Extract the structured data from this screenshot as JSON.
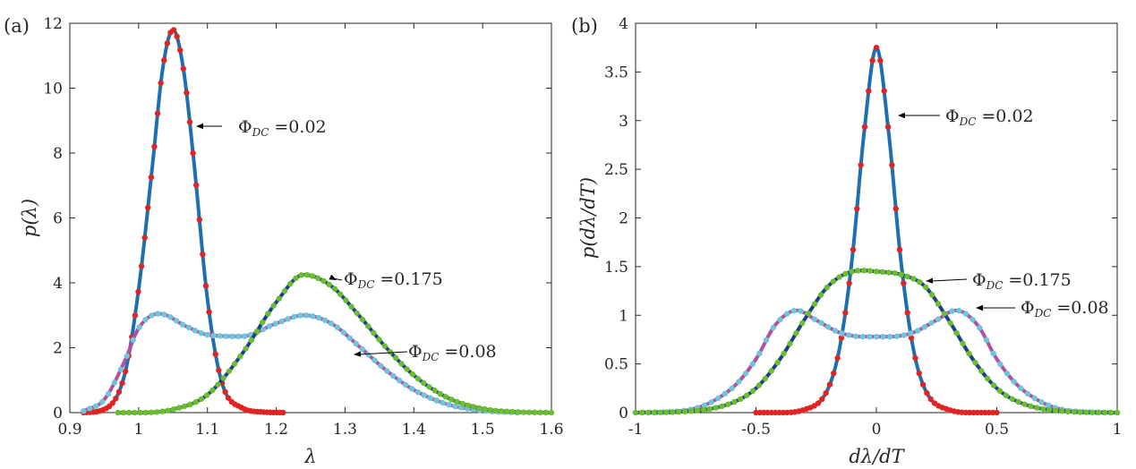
{
  "colors": {
    "fit_blue": "#1f6fb0",
    "fit_blue_dark": "#1b3f8f",
    "fit_magenta": "#b44fa0",
    "dot_red": "#e32222",
    "dot_green": "#6cbf2c",
    "dot_cyan": "#6cc6dc",
    "axis": "#262626"
  },
  "chart_data": [
    {
      "type": "line",
      "panel_label": "(a)",
      "xlabel": "λ",
      "ylabel": "p(λ)",
      "xlim": [
        0.9,
        1.6
      ],
      "ylim": [
        0,
        12
      ],
      "xticks": [
        0.9,
        1,
        1.1,
        1.2,
        1.3,
        1.4,
        1.5,
        1.6
      ],
      "xtick_labels": [
        "0.9",
        "1",
        "1.1",
        "1.2",
        "1.3",
        "1.4",
        "1.5",
        "1.6"
      ],
      "yticks": [
        0,
        2,
        4,
        6,
        8,
        10,
        12
      ],
      "ytick_labels": [
        "0",
        "2",
        "4",
        "6",
        "8",
        "10",
        "12"
      ],
      "series": [
        {
          "phi": "0.02",
          "line_color": "#1f6fb0",
          "marker_color": "#e32222",
          "x_range": [
            0.92,
            1.21
          ],
          "x": [
            0.92,
            0.95,
            0.98,
            1.0,
            1.02,
            1.035,
            1.05,
            1.065,
            1.08,
            1.1,
            1.12,
            1.15,
            1.18,
            1.21
          ],
          "y": [
            0.0,
            0.1,
            1.2,
            3.8,
            7.6,
            10.6,
            11.8,
            10.6,
            7.8,
            3.5,
            1.0,
            0.15,
            0.02,
            0.0
          ]
        },
        {
          "phi": "0.08",
          "line_color": "#b44fa0",
          "marker_color": "#6cc6dc",
          "x_range": [
            0.92,
            1.55
          ],
          "x": [
            0.92,
            0.95,
            0.98,
            1.0,
            1.03,
            1.07,
            1.1,
            1.15,
            1.2,
            1.24,
            1.28,
            1.32,
            1.36,
            1.4,
            1.45,
            1.5,
            1.55
          ],
          "y": [
            0.05,
            0.4,
            1.6,
            2.6,
            3.05,
            2.65,
            2.4,
            2.35,
            2.75,
            3.0,
            2.75,
            2.05,
            1.3,
            0.7,
            0.25,
            0.06,
            0.0
          ]
        },
        {
          "phi": "0.175",
          "line_color": "#1b3f8f",
          "marker_color": "#6cbf2c",
          "x_range": [
            0.97,
            1.6
          ],
          "x": [
            0.97,
            1.0,
            1.05,
            1.1,
            1.15,
            1.2,
            1.24,
            1.28,
            1.32,
            1.36,
            1.4,
            1.45,
            1.5,
            1.55,
            1.6
          ],
          "y": [
            0.0,
            0.0,
            0.1,
            0.55,
            1.8,
            3.4,
            4.25,
            3.9,
            3.0,
            2.0,
            1.15,
            0.45,
            0.12,
            0.02,
            0.0
          ]
        }
      ],
      "annotations": [
        {
          "symbol": "Φ",
          "sub": "DC",
          "value": "=0.02"
        },
        {
          "symbol": "Φ",
          "sub": "DC",
          "value": "=0.175"
        },
        {
          "symbol": "Φ",
          "sub": "DC",
          "value": "=0.08"
        }
      ]
    },
    {
      "type": "line",
      "panel_label": "(b)",
      "xlabel": "dλ/dT",
      "ylabel": "p(dλ/dT)",
      "xlim": [
        -1,
        1
      ],
      "ylim": [
        0,
        4
      ],
      "xticks": [
        -1,
        -0.5,
        0,
        0.5,
        1
      ],
      "xtick_labels": [
        "-1",
        "-0.5",
        "0",
        "0.5",
        "1"
      ],
      "yticks": [
        0,
        0.5,
        1,
        1.5,
        2,
        2.5,
        3,
        3.5,
        4
      ],
      "ytick_labels": [
        "0",
        "0.5",
        "1",
        "1.5",
        "2",
        "2.5",
        "3",
        "3.5",
        "4"
      ],
      "series": [
        {
          "phi": "0.02",
          "line_color": "#1f6fb0",
          "marker_color": "#e32222",
          "x_range": [
            -0.5,
            0.5
          ],
          "x": [
            -0.5,
            -0.4,
            -0.3,
            -0.2,
            -0.15,
            -0.1,
            -0.05,
            0.0,
            0.05,
            0.1,
            0.15,
            0.2,
            0.3,
            0.4,
            0.5
          ],
          "y": [
            0.0,
            0.0,
            0.03,
            0.25,
            0.7,
            1.6,
            2.9,
            3.75,
            2.9,
            1.6,
            0.7,
            0.25,
            0.03,
            0.0,
            0.0
          ]
        },
        {
          "phi": "0.08",
          "line_color": "#b44fa0",
          "marker_color": "#6cc6dc",
          "x_range": [
            -1,
            1
          ],
          "x": [
            -1.0,
            -0.8,
            -0.6,
            -0.5,
            -0.42,
            -0.33,
            -0.25,
            -0.15,
            -0.05,
            0.0,
            0.05,
            0.15,
            0.25,
            0.33,
            0.42,
            0.5,
            0.6,
            0.8,
            1.0
          ],
          "y": [
            0.0,
            0.02,
            0.25,
            0.55,
            0.9,
            1.05,
            0.95,
            0.82,
            0.78,
            0.78,
            0.78,
            0.82,
            0.95,
            1.05,
            0.9,
            0.55,
            0.25,
            0.02,
            0.0
          ]
        },
        {
          "phi": "0.175",
          "line_color": "#1b3f8f",
          "marker_color": "#6cbf2c",
          "x_range": [
            -1,
            1
          ],
          "x": [
            -1.0,
            -0.8,
            -0.6,
            -0.5,
            -0.4,
            -0.3,
            -0.2,
            -0.1,
            -0.05,
            0.0,
            0.05,
            0.1,
            0.2,
            0.3,
            0.4,
            0.5,
            0.6,
            0.8,
            1.0
          ],
          "y": [
            0.0,
            0.01,
            0.1,
            0.25,
            0.55,
            0.95,
            1.3,
            1.45,
            1.46,
            1.45,
            1.44,
            1.42,
            1.3,
            0.95,
            0.55,
            0.25,
            0.1,
            0.01,
            0.0
          ]
        }
      ],
      "annotations": [
        {
          "symbol": "Φ",
          "sub": "DC",
          "value": "=0.02"
        },
        {
          "symbol": "Φ",
          "sub": "DC",
          "value": "=0.175"
        },
        {
          "symbol": "Φ",
          "sub": "DC",
          "value": "=0.08"
        }
      ]
    }
  ]
}
